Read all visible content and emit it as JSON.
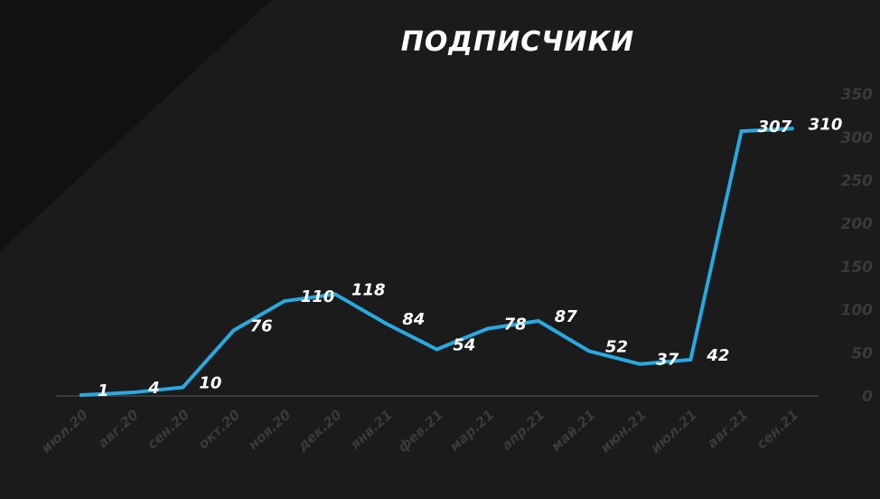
{
  "chart_data": {
    "type": "line",
    "title": "ПОДПИСЧИКИ",
    "categories": [
      "июл.20",
      "авг.20",
      "сен.20",
      "окт.20",
      "ноя.20",
      "дек.20",
      "янв.21",
      "фев.21",
      "мар.21",
      "апр.21",
      "май.21",
      "июн.21",
      "июл.21",
      "авг.21",
      "сен.21"
    ],
    "series": [
      {
        "values": [
          1,
          4,
          10,
          76,
          110,
          118,
          84,
          54,
          78,
          87,
          52,
          37,
          42,
          307,
          310
        ]
      }
    ],
    "ylim": [
      0,
      350
    ],
    "yticks": [
      0,
      50,
      100,
      150,
      200,
      250,
      300,
      350
    ],
    "grid": false,
    "line_color": "#29a9e0",
    "background": "#1b1b1b",
    "label_color": "#ffffff",
    "axis_text_color": "#3a3a3a"
  }
}
